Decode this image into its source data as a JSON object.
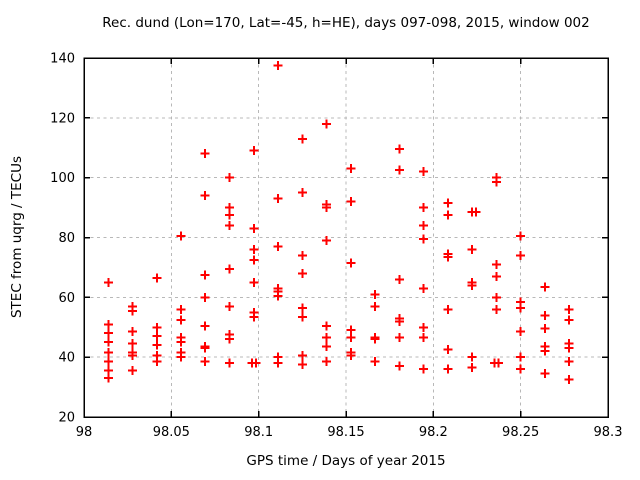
{
  "window": {
    "background": "#ffffff"
  },
  "colors": {
    "marker": "#ff0000",
    "grid": "#b8b8b8",
    "axis": "#000000",
    "text": "#000000"
  },
  "chart_data": {
    "type": "scatter",
    "title": "Rec. dund (Lon=170, Lat=-45, h=HE), days 097-098, 2015, window 002",
    "xlabel": "GPS time / Days of year 2015",
    "ylabel": "STEC from uqrg / TECUs",
    "xlim": [
      98.0,
      98.3
    ],
    "ylim": [
      20,
      140
    ],
    "xticks": [
      98.0,
      98.05,
      98.1,
      98.15,
      98.2,
      98.25,
      98.3
    ],
    "xtick_labels": [
      "98",
      "98.05",
      "98.1",
      "98.15",
      "98.2",
      "98.25",
      "98.3"
    ],
    "yticks": [
      20,
      40,
      60,
      80,
      100,
      120,
      140
    ],
    "ytick_labels": [
      "20",
      "40",
      "60",
      "80",
      "100",
      "120",
      "140"
    ],
    "grid": true,
    "legend": "none",
    "marker": {
      "shape": "plus",
      "color": "#ff0000",
      "size": 9,
      "stroke_width": 2
    },
    "series": [
      {
        "name": "STEC",
        "points": [
          [
            98.0139,
            65
          ],
          [
            98.0139,
            51
          ],
          [
            98.0139,
            48
          ],
          [
            98.0139,
            45
          ],
          [
            98.0139,
            41.5
          ],
          [
            98.0139,
            38.5
          ],
          [
            98.0139,
            35.5
          ],
          [
            98.0139,
            33
          ],
          [
            98.0278,
            57
          ],
          [
            98.0278,
            55.5
          ],
          [
            98.0278,
            48.5
          ],
          [
            98.0278,
            44.5
          ],
          [
            98.0278,
            41.5
          ],
          [
            98.0278,
            40.5
          ],
          [
            98.0278,
            35.5
          ],
          [
            98.0417,
            66.5
          ],
          [
            98.0417,
            50
          ],
          [
            98.0417,
            47
          ],
          [
            98.0417,
            44
          ],
          [
            98.0417,
            40.5
          ],
          [
            98.0417,
            38.5
          ],
          [
            98.0556,
            80.5
          ],
          [
            98.0556,
            56
          ],
          [
            98.0556,
            52.5
          ],
          [
            98.0556,
            46.5
          ],
          [
            98.0556,
            45
          ],
          [
            98.0556,
            41.5
          ],
          [
            98.0556,
            40
          ],
          [
            98.0694,
            108
          ],
          [
            98.0694,
            94
          ],
          [
            98.0694,
            67.5
          ],
          [
            98.0694,
            60
          ],
          [
            98.0694,
            50.5
          ],
          [
            98.0694,
            43.5
          ],
          [
            98.0694,
            43
          ],
          [
            98.0694,
            38.5
          ],
          [
            98.0833,
            100
          ],
          [
            98.0833,
            90
          ],
          [
            98.0833,
            87.5
          ],
          [
            98.0833,
            84
          ],
          [
            98.0833,
            69.5
          ],
          [
            98.0833,
            57
          ],
          [
            98.0833,
            47.5
          ],
          [
            98.0833,
            46
          ],
          [
            98.0833,
            38
          ],
          [
            98.0972,
            109
          ],
          [
            98.0972,
            83
          ],
          [
            98.0972,
            76
          ],
          [
            98.0972,
            72.5
          ],
          [
            98.0972,
            65
          ],
          [
            98.0972,
            55
          ],
          [
            98.0972,
            53.5
          ],
          [
            98.0961,
            38
          ],
          [
            98.0984,
            38
          ],
          [
            98.1111,
            137.5
          ],
          [
            98.1111,
            93
          ],
          [
            98.1111,
            77
          ],
          [
            98.1111,
            63
          ],
          [
            98.1111,
            62
          ],
          [
            98.1111,
            60.5
          ],
          [
            98.1111,
            40
          ],
          [
            98.1111,
            38
          ],
          [
            98.125,
            113
          ],
          [
            98.125,
            95
          ],
          [
            98.125,
            74
          ],
          [
            98.125,
            68
          ],
          [
            98.125,
            56.5
          ],
          [
            98.125,
            53.5
          ],
          [
            98.125,
            40.5
          ],
          [
            98.125,
            37.5
          ],
          [
            98.1389,
            118
          ],
          [
            98.1389,
            91
          ],
          [
            98.1389,
            90
          ],
          [
            98.1389,
            79
          ],
          [
            98.1389,
            50.5
          ],
          [
            98.1389,
            46.5
          ],
          [
            98.1389,
            43.5
          ],
          [
            98.1389,
            38.5
          ],
          [
            98.1528,
            103
          ],
          [
            98.1528,
            92
          ],
          [
            98.1528,
            71.5
          ],
          [
            98.1528,
            49
          ],
          [
            98.1528,
            46.5
          ],
          [
            98.1528,
            41.5
          ],
          [
            98.1528,
            40.5
          ],
          [
            98.1667,
            61
          ],
          [
            98.1667,
            57
          ],
          [
            98.1667,
            46.5
          ],
          [
            98.1667,
            46
          ],
          [
            98.1667,
            38.5
          ],
          [
            98.1806,
            109.5
          ],
          [
            98.1806,
            102.5
          ],
          [
            98.1806,
            66
          ],
          [
            98.1806,
            53
          ],
          [
            98.1806,
            52
          ],
          [
            98.1806,
            46.5
          ],
          [
            98.1806,
            37
          ],
          [
            98.1944,
            102
          ],
          [
            98.1944,
            90
          ],
          [
            98.1944,
            84
          ],
          [
            98.1944,
            79.5
          ],
          [
            98.1944,
            63
          ],
          [
            98.1944,
            50
          ],
          [
            98.1944,
            46.5
          ],
          [
            98.1944,
            36
          ],
          [
            98.2083,
            91.5
          ],
          [
            98.2083,
            87.5
          ],
          [
            98.2083,
            74.5
          ],
          [
            98.2083,
            73.5
          ],
          [
            98.2083,
            56
          ],
          [
            98.2083,
            42.5
          ],
          [
            98.2083,
            36
          ],
          [
            98.2222,
            88.5
          ],
          [
            98.2245,
            88.5
          ],
          [
            98.2222,
            76
          ],
          [
            98.2222,
            65
          ],
          [
            98.2222,
            64
          ],
          [
            98.2222,
            40
          ],
          [
            98.2222,
            36.5
          ],
          [
            98.2361,
            100
          ],
          [
            98.2361,
            98.5
          ],
          [
            98.2361,
            71
          ],
          [
            98.2361,
            67
          ],
          [
            98.2361,
            60
          ],
          [
            98.2361,
            56
          ],
          [
            98.235,
            38
          ],
          [
            98.2372,
            38
          ],
          [
            98.25,
            80.5
          ],
          [
            98.25,
            74
          ],
          [
            98.25,
            58.5
          ],
          [
            98.25,
            56.5
          ],
          [
            98.25,
            48.5
          ],
          [
            98.25,
            40
          ],
          [
            98.25,
            36
          ],
          [
            98.2639,
            63.5
          ],
          [
            98.2639,
            54
          ],
          [
            98.2639,
            49.5
          ],
          [
            98.2639,
            43.5
          ],
          [
            98.2639,
            42
          ],
          [
            98.2639,
            34.5
          ],
          [
            98.2778,
            56
          ],
          [
            98.2778,
            52.5
          ],
          [
            98.2778,
            44.5
          ],
          [
            98.2778,
            43
          ],
          [
            98.2778,
            38.5
          ],
          [
            98.2778,
            32.5
          ]
        ]
      }
    ]
  }
}
